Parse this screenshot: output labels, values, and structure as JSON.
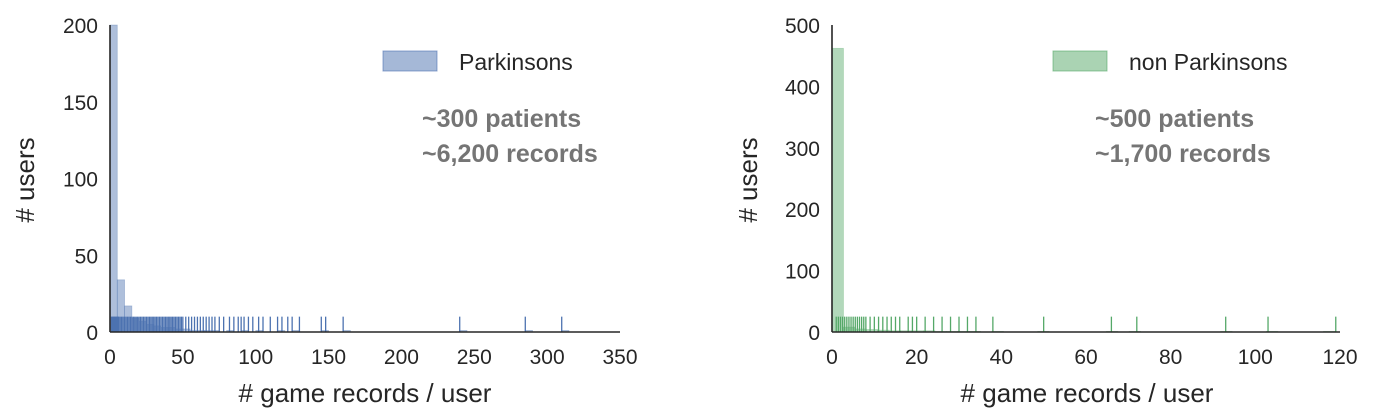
{
  "chart_data": [
    {
      "type": "histogram",
      "xlabel": "# game records / user",
      "ylabel": "# users",
      "xlim": [
        0,
        350
      ],
      "ylim": [
        0,
        200
      ],
      "xticks": [
        0,
        50,
        100,
        150,
        200,
        250,
        300,
        350
      ],
      "yticks": [
        0,
        50,
        100,
        150,
        200
      ],
      "legend": "Parkinsons",
      "legend_position": "top-right",
      "color": "#4c72b0",
      "bars": [
        {
          "x0": 0,
          "x1": 5,
          "value": 200
        },
        {
          "x0": 5,
          "x1": 10,
          "value": 34
        },
        {
          "x0": 10,
          "x1": 15,
          "value": 17
        },
        {
          "x0": 15,
          "x1": 20,
          "value": 9
        },
        {
          "x0": 20,
          "x1": 25,
          "value": 7
        },
        {
          "x0": 25,
          "x1": 30,
          "value": 5
        },
        {
          "x0": 30,
          "x1": 35,
          "value": 4
        },
        {
          "x0": 35,
          "x1": 40,
          "value": 3
        },
        {
          "x0": 40,
          "x1": 45,
          "value": 3
        },
        {
          "x0": 45,
          "x1": 50,
          "value": 2
        },
        {
          "x0": 50,
          "x1": 55,
          "value": 2
        },
        {
          "x0": 55,
          "x1": 60,
          "value": 1
        },
        {
          "x0": 60,
          "x1": 65,
          "value": 1
        },
        {
          "x0": 65,
          "x1": 70,
          "value": 1
        },
        {
          "x0": 70,
          "x1": 75,
          "value": 1
        },
        {
          "x0": 80,
          "x1": 85,
          "value": 1
        },
        {
          "x0": 90,
          "x1": 95,
          "value": 1
        },
        {
          "x0": 100,
          "x1": 105,
          "value": 1
        },
        {
          "x0": 115,
          "x1": 120,
          "value": 1
        },
        {
          "x0": 125,
          "x1": 130,
          "value": 1
        },
        {
          "x0": 145,
          "x1": 150,
          "value": 1
        },
        {
          "x0": 160,
          "x1": 165,
          "value": 1
        },
        {
          "x0": 240,
          "x1": 245,
          "value": 1
        },
        {
          "x0": 285,
          "x1": 290,
          "value": 1
        },
        {
          "x0": 310,
          "x1": 315,
          "value": 1
        }
      ],
      "rug_height": 10,
      "rug": [
        1,
        1.5,
        2,
        2.5,
        3,
        3.5,
        4,
        4.5,
        5,
        5.5,
        6,
        7,
        8,
        9,
        10,
        11,
        12,
        13,
        14,
        15,
        16,
        17,
        18,
        19,
        20,
        21,
        22,
        23,
        24,
        25,
        26,
        27,
        28,
        29,
        30,
        31,
        32,
        33,
        34,
        35,
        36,
        37,
        38,
        39,
        40,
        41,
        42,
        43,
        44,
        45,
        46,
        47,
        48,
        49,
        50,
        52,
        54,
        56,
        58,
        60,
        62,
        64,
        66,
        68,
        70,
        72,
        75,
        78,
        82,
        85,
        88,
        90,
        92,
        95,
        98,
        102,
        105,
        110,
        115,
        118,
        122,
        125,
        130,
        145,
        148,
        160,
        240,
        285,
        310
      ],
      "annotations": [
        "~300 patients",
        "~6,200 records"
      ]
    },
    {
      "type": "histogram",
      "xlabel": "# game records / user",
      "ylabel": "# users",
      "xlim": [
        0,
        120
      ],
      "ylim": [
        0,
        500
      ],
      "xticks": [
        0,
        20,
        40,
        60,
        80,
        100,
        120
      ],
      "yticks": [
        0,
        100,
        200,
        300,
        400,
        500
      ],
      "legend": "non Parkinsons",
      "legend_position": "top-right",
      "color": "#55a868",
      "bars": [
        {
          "x0": 0,
          "x1": 2.7,
          "value": 462
        },
        {
          "x0": 2.7,
          "x1": 5.4,
          "value": 8
        },
        {
          "x0": 5.4,
          "x1": 8.1,
          "value": 5
        },
        {
          "x0": 8.1,
          "x1": 10.8,
          "value": 4
        },
        {
          "x0": 10.8,
          "x1": 13.5,
          "value": 3
        },
        {
          "x0": 13.5,
          "x1": 16.2,
          "value": 2
        },
        {
          "x0": 16.2,
          "x1": 18.9,
          "value": 2
        },
        {
          "x0": 18.9,
          "x1": 21.6,
          "value": 2
        },
        {
          "x0": 21.6,
          "x1": 24.3,
          "value": 2
        },
        {
          "x0": 24.3,
          "x1": 27,
          "value": 1
        },
        {
          "x0": 27,
          "x1": 29.7,
          "value": 1
        },
        {
          "x0": 29.7,
          "x1": 32.4,
          "value": 1
        },
        {
          "x0": 32.4,
          "x1": 35.1,
          "value": 1
        },
        {
          "x0": 37.8,
          "x1": 40.5,
          "value": 1
        },
        {
          "x0": 48.6,
          "x1": 51.3,
          "value": 1
        },
        {
          "x0": 64.8,
          "x1": 67.5,
          "value": 1
        },
        {
          "x0": 70.2,
          "x1": 72.9,
          "value": 1
        },
        {
          "x0": 91.8,
          "x1": 94.5,
          "value": 1
        },
        {
          "x0": 102.6,
          "x1": 105.3,
          "value": 1
        },
        {
          "x0": 116.1,
          "x1": 118.8,
          "value": 1
        }
      ],
      "rug_height": 25,
      "rug": [
        1,
        1.5,
        2,
        2.5,
        3,
        3.5,
        4,
        4.5,
        5,
        5.5,
        6,
        6.5,
        7,
        7.5,
        8,
        9,
        10,
        11,
        12,
        13,
        14,
        15,
        16,
        18,
        19,
        20,
        22,
        24,
        26,
        28,
        30,
        32,
        34,
        38,
        50,
        66,
        72,
        93,
        103,
        119
      ],
      "annotations": [
        "~500 patients",
        "~1,700 records"
      ]
    }
  ]
}
